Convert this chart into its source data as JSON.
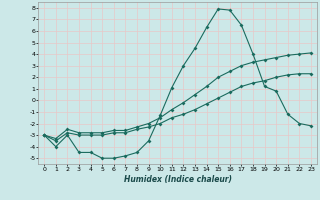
{
  "title": "",
  "xlabel": "Humidex (Indice chaleur)",
  "bg_color": "#cce8e8",
  "line_color": "#1a6b5e",
  "grid_color": "#e8c8c8",
  "xlim": [
    -0.5,
    23.5
  ],
  "ylim": [
    -5.5,
    8.5
  ],
  "xticks": [
    0,
    1,
    2,
    3,
    4,
    5,
    6,
    7,
    8,
    9,
    10,
    11,
    12,
    13,
    14,
    15,
    16,
    17,
    18,
    19,
    20,
    21,
    22,
    23
  ],
  "yticks": [
    -5,
    -4,
    -3,
    -2,
    -1,
    0,
    1,
    2,
    3,
    4,
    5,
    6,
    7,
    8
  ],
  "curve1_x": [
    0,
    1,
    2,
    3,
    4,
    5,
    6,
    7,
    8,
    9,
    10,
    11,
    12,
    13,
    14,
    15,
    16,
    17,
    18,
    19,
    20,
    21,
    22,
    23
  ],
  "curve1_y": [
    -3.0,
    -4.0,
    -3.0,
    -4.5,
    -4.5,
    -5.0,
    -5.0,
    -4.8,
    -4.5,
    -3.5,
    -1.3,
    1.1,
    3.0,
    4.5,
    6.3,
    7.9,
    7.8,
    6.5,
    4.0,
    1.2,
    0.8,
    -1.2,
    -2.0,
    -2.2
  ],
  "curve2_x": [
    0,
    1,
    2,
    3,
    4,
    5,
    6,
    7,
    8,
    9,
    10,
    11,
    12,
    13,
    14,
    15,
    16,
    17,
    18,
    19,
    20,
    21,
    22,
    23
  ],
  "curve2_y": [
    -3.0,
    -3.5,
    -2.8,
    -3.0,
    -3.0,
    -3.0,
    -2.8,
    -2.8,
    -2.5,
    -2.3,
    -2.0,
    -1.5,
    -1.2,
    -0.8,
    -0.3,
    0.2,
    0.7,
    1.2,
    1.5,
    1.7,
    2.0,
    2.2,
    2.3,
    2.3
  ],
  "curve3_x": [
    0,
    1,
    2,
    3,
    4,
    5,
    6,
    7,
    8,
    9,
    10,
    11,
    12,
    13,
    14,
    15,
    16,
    17,
    18,
    19,
    20,
    21,
    22,
    23
  ],
  "curve3_y": [
    -3.0,
    -3.3,
    -2.5,
    -2.8,
    -2.8,
    -2.8,
    -2.6,
    -2.6,
    -2.3,
    -2.0,
    -1.5,
    -0.8,
    -0.2,
    0.5,
    1.2,
    2.0,
    2.5,
    3.0,
    3.3,
    3.5,
    3.7,
    3.9,
    4.0,
    4.1
  ]
}
